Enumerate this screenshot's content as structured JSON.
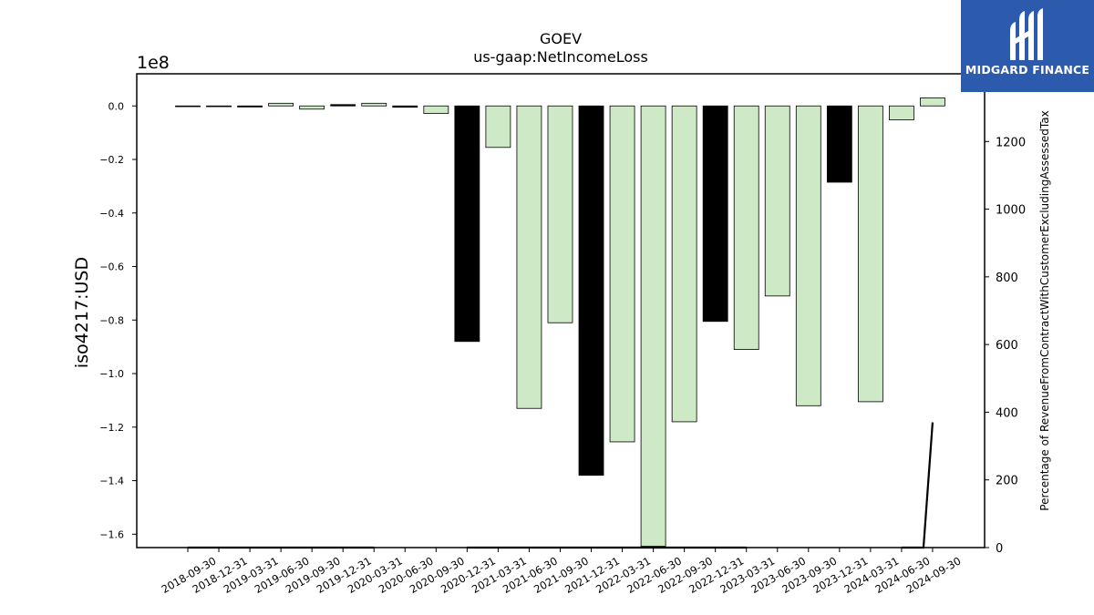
{
  "chart_data": {
    "type": "bar",
    "title": "GOEV",
    "subtitle": "us-gaap:NetIncomeLoss",
    "ylabel": "iso4217:USD",
    "y_offset_label": "1e8",
    "y2label": "Percentage of RevenueFromContractWithCustomerExcludingAssessedTax",
    "ylim": [
      -1.65,
      0.12
    ],
    "y2lim": [
      0,
      1400
    ],
    "yticks": [
      "0.0",
      "−0.2",
      "−0.4",
      "−0.6",
      "−0.8",
      "−1.0",
      "−1.2",
      "−1.4",
      "−1.6"
    ],
    "ytick_values": [
      0,
      -0.2,
      -0.4,
      -0.6,
      -0.8,
      -1.0,
      -1.2,
      -1.4,
      -1.6
    ],
    "y2ticks": [
      "0",
      "200",
      "400",
      "600",
      "800",
      "1000",
      "1200",
      "1400"
    ],
    "y2tick_values": [
      0,
      200,
      400,
      600,
      800,
      1000,
      1200,
      1400
    ],
    "categories": [
      "2018-09-30",
      "2018-12-31",
      "2019-03-31",
      "2019-06-30",
      "2019-09-30",
      "2019-12-31",
      "2020-03-31",
      "2020-06-30",
      "2020-09-30",
      "2020-12-31",
      "2021-03-31",
      "2021-06-30",
      "2021-09-30",
      "2021-12-31",
      "2022-03-31",
      "2022-06-30",
      "2022-09-30",
      "2022-12-31",
      "2023-03-31",
      "2023-06-30",
      "2023-09-30",
      "2023-12-31",
      "2024-03-31",
      "2024-06-30",
      "2024-09-30"
    ],
    "values": [
      -0.002,
      -0.002,
      -0.004,
      0.01,
      -0.012,
      0.005,
      0.01,
      -0.005,
      -0.028,
      -0.88,
      -0.155,
      -1.13,
      -0.81,
      -1.38,
      -1.255,
      -1.645,
      -1.18,
      -0.805,
      -0.91,
      -0.71,
      -1.12,
      -0.285,
      -1.105,
      -0.052,
      0.03
    ],
    "bar_colors": [
      "#cde9c5",
      "#cde9c5",
      "#000000",
      "#cde9c5",
      "#cde9c5",
      "#000000",
      "#cde9c5",
      "#000000",
      "#cde9c5",
      "#000000",
      "#cde9c5",
      "#cde9c5",
      "#cde9c5",
      "#000000",
      "#cde9c5",
      "#cde9c5",
      "#cde9c5",
      "#000000",
      "#cde9c5",
      "#cde9c5",
      "#cde9c5",
      "#000000",
      "#cde9c5",
      "#cde9c5",
      "#cde9c5"
    ],
    "line_series": {
      "axis": "y2",
      "values": [
        0,
        0,
        0,
        0,
        0,
        0,
        0,
        null,
        null,
        0,
        0,
        0,
        0,
        0,
        0,
        0,
        0,
        0,
        0,
        null,
        null,
        null,
        null,
        0,
        370
      ]
    },
    "grid": false
  },
  "logo": {
    "text": "MIDGARD FINANCE",
    "color": "#2c5aad"
  }
}
